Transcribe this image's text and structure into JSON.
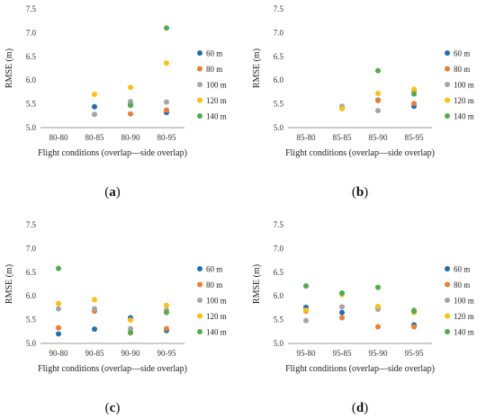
{
  "chart_data": [
    {
      "type": "scatter",
      "panel_label": "a",
      "title": "",
      "xlabel": "Flight conditions (overlap—side overlap)",
      "ylabel": "RMSE (m)",
      "categories": [
        "80-80",
        "80-85",
        "80-90",
        "80-95"
      ],
      "ylim": [
        5.0,
        7.5
      ],
      "yticks": [
        "5.0",
        "5.5",
        "6.0",
        "6.5",
        "7.0",
        "7.5"
      ],
      "grid": false,
      "legend_position": "right",
      "series": [
        {
          "name": "60 m",
          "color": "#1f6fb5",
          "values": [
            null,
            5.44,
            5.48,
            5.32
          ]
        },
        {
          "name": "80 m",
          "color": "#f07c32",
          "values": [
            null,
            null,
            5.29,
            5.37
          ]
        },
        {
          "name": "100 m",
          "color": "#a5a5a5",
          "values": [
            null,
            5.28,
            5.55,
            5.54
          ]
        },
        {
          "name": "120 m",
          "color": "#fcc00f",
          "values": [
            null,
            5.7,
            5.85,
            6.36
          ]
        },
        {
          "name": "140 m",
          "color": "#4fad4a",
          "values": [
            null,
            null,
            5.47,
            7.1
          ]
        }
      ]
    },
    {
      "type": "scatter",
      "panel_label": "b",
      "title": "",
      "xlabel": "Flight conditions (overlap—side overlap)",
      "ylabel": "RMSE (m)",
      "categories": [
        "85-80",
        "85-85",
        "85-90",
        "85-95"
      ],
      "ylim": [
        5.0,
        7.5
      ],
      "yticks": [
        "5.0",
        "5.5",
        "6.0",
        "6.5",
        "7.0",
        "7.5"
      ],
      "grid": false,
      "legend_position": "right",
      "series": [
        {
          "name": "60 m",
          "color": "#1f6fb5",
          "values": [
            null,
            5.43,
            5.58,
            5.45
          ]
        },
        {
          "name": "80 m",
          "color": "#f07c32",
          "values": [
            null,
            5.42,
            5.57,
            5.51
          ]
        },
        {
          "name": "100 m",
          "color": "#a5a5a5",
          "values": [
            null,
            5.45,
            5.36,
            5.77
          ]
        },
        {
          "name": "120 m",
          "color": "#fcc00f",
          "values": [
            null,
            5.4,
            5.72,
            5.81
          ]
        },
        {
          "name": "140 m",
          "color": "#4fad4a",
          "values": [
            null,
            null,
            6.2,
            5.71
          ]
        }
      ]
    },
    {
      "type": "scatter",
      "panel_label": "c",
      "title": "",
      "xlabel": "Flight conditions (overlap—side overlap)",
      "ylabel": "RMSE (m)",
      "categories": [
        "90-80",
        "90-85",
        "90-90",
        "90-95"
      ],
      "ylim": [
        5.0,
        7.5
      ],
      "yticks": [
        "5.0",
        "5.5",
        "6.0",
        "6.5",
        "7.0",
        "7.5"
      ],
      "grid": false,
      "legend_position": "right",
      "series": [
        {
          "name": "60 m",
          "color": "#1f6fb5",
          "values": [
            5.2,
            5.3,
            5.54,
            5.27
          ]
        },
        {
          "name": "80 m",
          "color": "#f07c32",
          "values": [
            5.33,
            5.68,
            5.22,
            5.31
          ]
        },
        {
          "name": "100 m",
          "color": "#a5a5a5",
          "values": [
            5.73,
            5.73,
            5.31,
            5.7
          ]
        },
        {
          "name": "120 m",
          "color": "#fcc00f",
          "values": [
            5.84,
            5.92,
            5.49,
            5.8
          ]
        },
        {
          "name": "140 m",
          "color": "#4fad4a",
          "values": [
            6.58,
            null,
            5.23,
            5.65
          ]
        }
      ]
    },
    {
      "type": "scatter",
      "panel_label": "d",
      "title": "",
      "xlabel": "Flight conditions (overlap—side overlap)",
      "ylabel": "RMSE (m)",
      "categories": [
        "95-80",
        "95-85",
        "95-90",
        "95-95"
      ],
      "ylim": [
        5.0,
        7.5
      ],
      "yticks": [
        "5.0",
        "5.5",
        "6.0",
        "6.5",
        "7.0",
        "7.5"
      ],
      "grid": false,
      "legend_position": "right",
      "series": [
        {
          "name": "60 m",
          "color": "#1f6fb5",
          "values": [
            5.76,
            5.65,
            5.76,
            5.39
          ]
        },
        {
          "name": "80 m",
          "color": "#f07c32",
          "values": [
            5.68,
            5.54,
            5.35,
            5.35
          ]
        },
        {
          "name": "100 m",
          "color": "#a5a5a5",
          "values": [
            5.48,
            5.77,
            5.72,
            5.7
          ]
        },
        {
          "name": "120 m",
          "color": "#fcc00f",
          "values": [
            5.7,
            6.03,
            5.78,
            5.65
          ]
        },
        {
          "name": "140 m",
          "color": "#4fad4a",
          "values": [
            6.21,
            6.06,
            6.18,
            5.68
          ]
        }
      ]
    }
  ]
}
